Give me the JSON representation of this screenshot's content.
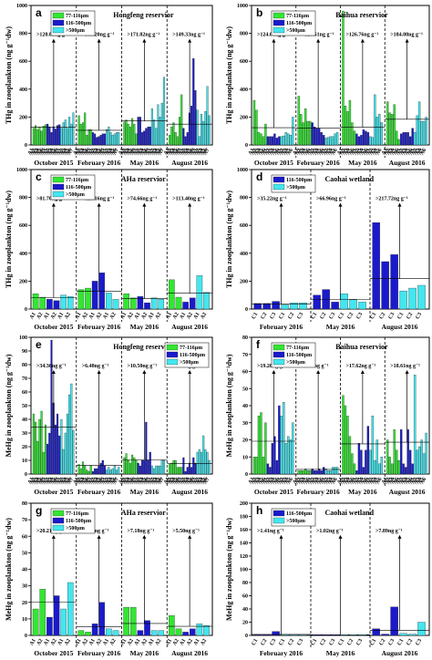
{
  "colors": {
    "g77": "#33e633",
    "g116": "#1a1acc",
    "g500": "#44e6ee",
    "axis": "#000000"
  },
  "panels": [
    {
      "letter": "a",
      "title": "Hongfeng reservior",
      "ylabel": "THg in zooplankton (ng g⁻¹dw)",
      "ymax": 1000,
      "yticks": [
        0,
        200,
        400,
        600,
        800,
        1000
      ],
      "months": [
        "October 2015",
        "February 2016",
        "May 2016",
        "August 2016"
      ],
      "legend": [
        "77-116μm",
        "116-500μm",
        "˃500μm"
      ],
      "annotations": [
        "˃128.83ng g⁻¹",
        "˃105.20ng g⁻¹",
        "˃171.82ng g⁻¹",
        "˃149.33ng g⁻¹"
      ],
      "means": [
        128.83,
        105.2,
        171.82,
        149.33
      ],
      "groups": [
        {
          "s": [
            [
              120,
              140,
              110,
              130,
              100,
              135,
              145
            ],
            [
              150,
              130,
              90,
              130,
              115,
              140,
              145
            ],
            [
              120,
              160,
              180,
              120,
              200,
              150,
              230
            ]
          ]
        },
        {
          "s": [
            [
              210,
              150,
              160,
              230,
              70,
              110,
              110
            ],
            [
              90,
              80,
              55,
              60,
              70,
              80,
              80
            ],
            [
              110,
              130,
              90,
              70,
              80,
              90,
              90
            ]
          ]
        },
        {
          "s": [
            [
              165,
              180,
              150,
              130,
              190,
              150,
              80
            ],
            [
              200,
              200,
              90,
              100,
              120,
              130,
              130
            ],
            [
              260,
              180,
              120,
              290,
              200,
              300,
              485
            ]
          ]
        },
        {
          "s": [
            [
              70,
              130,
              160,
              90,
              60,
              200,
              360
            ],
            [
              120,
              60,
              90,
              230,
              280,
              620,
              390
            ],
            [
              250,
              60,
              220,
              170,
              240,
              420,
              210
            ]
          ]
        }
      ]
    },
    {
      "letter": "b",
      "title": "Baihua reservior",
      "ylabel": "THg in zooplankton (ng g⁻¹dw)",
      "ymax": 1000,
      "yticks": [
        0,
        200,
        400,
        600,
        800,
        1000
      ],
      "months": [
        "October 2015",
        "February 2016",
        "May 2016",
        "August 2016"
      ],
      "legend": [
        "77-116μm",
        "116-500μm",
        "˃500μm"
      ],
      "annotations": [
        "˃124.06ng g⁻¹",
        "˃120.51ng g⁻¹",
        "˃126.76ng g⁻¹",
        "˃184.08ng g⁻¹"
      ],
      "means": [
        124.06,
        120.51,
        126.76,
        184.08
      ],
      "groups": [
        {
          "s": [
            [
              320,
              250,
              90,
              80,
              60,
              150
            ],
            [
              60,
              60,
              60,
              80,
              50,
              60
            ],
            [
              60,
              65,
              90,
              80,
              70,
              200
            ]
          ]
        },
        {
          "s": [
            [
              350,
              220,
              160,
              260,
              170,
              170
            ],
            [
              160,
              130,
              120,
              120,
              90,
              70
            ],
            [
              50,
              55,
              60,
              60,
              80,
              90
            ]
          ]
        },
        {
          "s": [
            [
              960,
              280,
              240,
              320,
              160,
              100
            ],
            [
              80,
              60,
              70,
              110,
              100,
              90
            ],
            [
              60,
              55,
              360,
              200,
              220,
              160
            ]
          ]
        },
        {
          "s": [
            [
              310,
              230,
              220,
              290,
              100,
              40
            ],
            [
              80,
              90,
              90,
              90,
              60,
              120
            ],
            [
              90,
              210,
              310,
              170,
              170,
              200
            ]
          ]
        }
      ]
    },
    {
      "letter": "c",
      "title": "AHa reservior",
      "ylabel": "THg in zooplankton (ng g⁻¹dw)",
      "ymax": 1000,
      "yticks": [
        0,
        200,
        400,
        600,
        800,
        1000
      ],
      "months": [
        "October 2015",
        "February 2016",
        "May 2016",
        "August 2016"
      ],
      "legend": [
        "77-116μm",
        "116-500μm",
        "˃500μm"
      ],
      "annotations": [
        "˃81.70ng g⁻¹",
        "˃128.16ng g⁻¹",
        "˃74.66ng g⁻¹",
        "˃113.40ng g⁻¹"
      ],
      "means": [
        81.7,
        128.16,
        74.66,
        113.4
      ],
      "groups": [
        {
          "s": [
            [
              110,
              85
            ],
            [
              70,
              60
            ],
            [
              100,
              90
            ]
          ]
        },
        {
          "s": [
            [
              140,
              150
            ],
            [
              200,
              260
            ],
            [
              115,
              70
            ]
          ]
        },
        {
          "s": [
            [
              110,
              80
            ],
            [
              90,
              45
            ],
            [
              80,
              70
            ]
          ]
        },
        {
          "s": [
            [
              210,
              85
            ],
            [
              50,
              80
            ],
            [
              240,
              120
            ]
          ]
        }
      ]
    },
    {
      "letter": "d",
      "title": "Caohai wetland",
      "ylabel": "THg in zooplankton (ng g⁻¹dw)",
      "ymax": 1000,
      "yticks": [
        0,
        200,
        400,
        600,
        800,
        1000
      ],
      "months": [
        "February 2016",
        "May 2016",
        "August 2016"
      ],
      "legend": [
        "116-500μm",
        "˃500μm"
      ],
      "annotations": [
        "˃35.22ng g⁻¹",
        "˃66.96ng g⁻¹",
        "˃217.72ng g⁻¹"
      ],
      "means": [
        35.22,
        66.96,
        217.72
      ],
      "groups": [
        {
          "s": [
            [
              40,
              40,
              55
            ],
            [
              30,
              45,
              45
            ]
          ]
        },
        {
          "s": [
            [
              100,
              140,
              50
            ],
            [
              110,
              70,
              50
            ]
          ]
        },
        {
          "s": [
            [
              620,
              340,
              390
            ],
            [
              130,
              150,
              170
            ]
          ]
        }
      ]
    },
    {
      "letter": "e",
      "title": "Hongfeng reservior",
      "ylabel": "MeHg in zooplankton (ng g⁻¹dw)",
      "ymax": 100,
      "yticks": [
        0,
        10,
        20,
        30,
        40,
        50,
        60,
        70,
        80,
        90,
        100
      ],
      "months": [
        "October 2015",
        "February 2016",
        "May 2016",
        "August 2016"
      ],
      "legend": [
        "77-116μm",
        "116-500μm",
        "˃500μm"
      ],
      "annotations": [
        "˃34.36ng g⁻¹",
        "˃6.48ng g⁻¹",
        "˃10.50ng g⁻¹",
        "˃7.56ng g⁻¹"
      ],
      "means": [
        34.36,
        6.48,
        10.5,
        7.56
      ],
      "groups": [
        {
          "s": [
            [
              44,
              38,
              24,
              40,
              46,
              16,
              36
            ],
            [
              22,
              30,
              98,
              52,
              36,
              44,
              28
            ],
            [
              40,
              18,
              30,
              44,
              58,
              66,
              32
            ]
          ]
        },
        {
          "s": [
            [
              7,
              4,
              9,
              6,
              3,
              2,
              6
            ],
            [
              2,
              4,
              4,
              6,
              8,
              10,
              6
            ],
            [
              3,
              5,
              3,
              4,
              6,
              3,
              5
            ]
          ]
        },
        {
          "s": [
            [
              12,
              15,
              10,
              8,
              14,
              12,
              10
            ],
            [
              8,
              6,
              10,
              10,
              38,
              10,
              16
            ],
            [
              6,
              4,
              6,
              6,
              6,
              10,
              10
            ]
          ]
        },
        {
          "s": [
            [
              7,
              8,
              10,
              10,
              5,
              5,
              5
            ],
            [
              12,
              2,
              5,
              8,
              5,
              12,
              8
            ],
            [
              16,
              18,
              16,
              28,
              18,
              16,
              10
            ]
          ]
        }
      ]
    },
    {
      "letter": "f",
      "title": "Baihua reservior",
      "ylabel": "MeHg in zooplankton (ng g⁻¹dw)",
      "ymax": 80,
      "yticks": [
        0,
        10,
        20,
        30,
        40,
        50,
        60,
        70,
        80
      ],
      "months": [
        "October 2015",
        "February 2016",
        "May 2016",
        "August 2016"
      ],
      "legend": [
        "77-116μm",
        "116-500μm",
        "˃500μm"
      ],
      "annotations": [
        "˃19.20ng g⁻¹",
        "˃2.70ng g⁻¹",
        "˃17.62ng g⁻¹",
        "˃18.61ng g⁻¹"
      ],
      "means": [
        19.2,
        2.7,
        17.62,
        18.61
      ],
      "groups": [
        {
          "s": [
            [
              10,
              10,
              34,
              36,
              10,
              30
            ],
            [
              6,
              4,
              18,
              22,
              8,
              40
            ],
            [
              34,
              42,
              18,
              22,
              20,
              30
            ]
          ]
        },
        {
          "s": [
            [
              2,
              2,
              2,
              3,
              2,
              2
            ],
            [
              3,
              2,
              2,
              3,
              2,
              4
            ],
            [
              3,
              2,
              2,
              4,
              4,
              4
            ]
          ]
        },
        {
          "s": [
            [
              46,
              40,
              34,
              22,
              12,
              6
            ],
            [
              2,
              18,
              14,
              4,
              14,
              28
            ],
            [
              14,
              34,
              8,
              20,
              6,
              10
            ]
          ]
        },
        {
          "s": [
            [
              20,
              10,
              6,
              26,
              14,
              8
            ],
            [
              26,
              6,
              4,
              26,
              14,
              6
            ],
            [
              58,
              14,
              16,
              20,
              12,
              24
            ]
          ]
        }
      ]
    },
    {
      "letter": "g",
      "title": "AHa reservior",
      "ylabel": "MeHg in zooplankton (ng g⁻¹dw)",
      "ymax": 80,
      "yticks": [
        0,
        10,
        20,
        30,
        40,
        50,
        60,
        70,
        80
      ],
      "months": [
        "October 2015",
        "February 2016",
        "May 2016",
        "August 2016"
      ],
      "legend": [
        "77-116μm",
        "116-500μm",
        "˃500μm"
      ],
      "annotations": [
        "˃20.21ng g⁻¹",
        "˃5.30ng g⁻¹",
        "˃7.18ng g⁻¹",
        "˃5.50ng g⁻¹"
      ],
      "means": [
        20.21,
        5.3,
        7.18,
        5.5
      ],
      "groups": [
        {
          "s": [
            [
              16,
              28
            ],
            [
              11,
              24
            ],
            [
              16,
              32
            ]
          ]
        },
        {
          "s": [
            [
              3,
              2
            ],
            [
              7,
              20
            ],
            [
              4,
              3
            ]
          ]
        },
        {
          "s": [
            [
              17,
              17
            ],
            [
              3,
              9
            ],
            [
              3,
              3
            ]
          ]
        },
        {
          "s": [
            [
              12,
              4
            ],
            [
              2,
              4
            ],
            [
              7,
              6
            ]
          ]
        }
      ]
    },
    {
      "letter": "h",
      "title": "Caohai wetland",
      "ylabel": "MeHg in zooplankton (ng g⁻¹dw)",
      "ymax": 200,
      "yticks": [
        0,
        20,
        40,
        60,
        80,
        100,
        120,
        140,
        160,
        180,
        200
      ],
      "months": [
        "February 2016",
        "May 2016",
        "August 2016"
      ],
      "legend": [
        "116-500μm",
        "˃500μm"
      ],
      "annotations": [
        "˃1.41ng g⁻¹",
        "˃1.02ng g⁻¹",
        "˃7.89ng g⁻¹"
      ],
      "means": [
        1.41,
        1.02,
        7.89
      ],
      "groups": [
        {
          "s": [
            [
              1,
              1,
              6
            ],
            [
              1,
              1,
              1
            ]
          ]
        },
        {
          "s": [
            [
              1,
              1,
              1
            ],
            [
              1,
              1,
              1
            ]
          ]
        },
        {
          "s": [
            [
              10,
              2,
              43
            ],
            [
              3,
              2,
              20
            ]
          ]
        }
      ]
    }
  ],
  "tick_labels": [
    "A1",
    "A2",
    "A3",
    "A4",
    "A5",
    "A6",
    "A7"
  ],
  "tick_labels_c": [
    "C1",
    "C2",
    "C3"
  ]
}
